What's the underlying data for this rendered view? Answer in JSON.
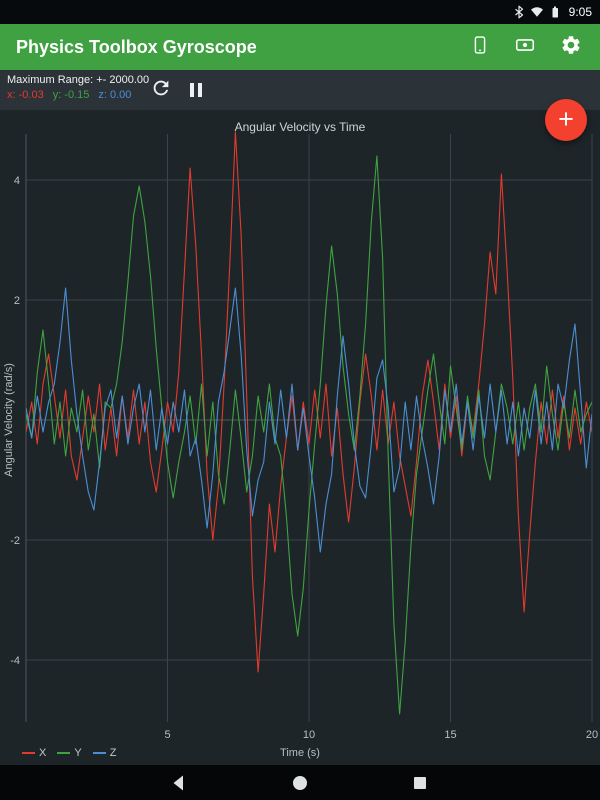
{
  "status_bar": {
    "time": "9:05",
    "icons": [
      "bluetooth-icon",
      "wifi-icon",
      "battery-icon"
    ]
  },
  "app_bar": {
    "title": "Physics Toolbox Gyroscope",
    "icons": [
      "device-icon",
      "record-icon",
      "settings-icon"
    ],
    "color": "#3fa142"
  },
  "toolbar": {
    "max_range_label": "Maximum Range: +- 2000.00",
    "readouts": [
      {
        "text": "x: -0.03",
        "color": "#e23b2e"
      },
      {
        "text": "y: -0.15",
        "color": "#3fa33f"
      },
      {
        "text": "z: 0.00",
        "color": "#4a8fd4"
      }
    ],
    "icons": [
      "reset-icon",
      "pause-icon"
    ]
  },
  "fab": {
    "label": "+",
    "color": "#f4402f"
  },
  "nav_bar": {
    "buttons": [
      "back",
      "home",
      "recents"
    ]
  },
  "chart_data": {
    "type": "line",
    "title": "Angular Velocity vs Time",
    "xlabel": "Time (s)",
    "ylabel": "Angular Velocity (rad/s)",
    "x_start": 0,
    "x_step": 0.2,
    "xlim": [
      0,
      20
    ],
    "ylim": [
      -5,
      4.8
    ],
    "x_ticks": [
      5,
      10,
      15,
      20
    ],
    "y_ticks": [
      4,
      2,
      -2,
      -4
    ],
    "grid": true,
    "legend_position": "bottom-left",
    "grid_color": "#3b444a",
    "axis_color": "#4c565d",
    "series": [
      {
        "name": "X",
        "color": "#e23b2e",
        "values": [
          -0.2,
          0.3,
          -0.4,
          0.6,
          1.1,
          0.4,
          -0.3,
          0.5,
          -0.6,
          -1.0,
          -0.3,
          0.4,
          -0.2,
          0.6,
          -0.5,
          0.2,
          -0.6,
          0.4,
          -0.3,
          0.5,
          -0.4,
          0.3,
          -0.7,
          -1.2,
          -0.5,
          0.3,
          -0.2,
          0.8,
          2.5,
          4.2,
          2.9,
          1.1,
          -0.9,
          -2.0,
          -1.1,
          0.6,
          2.6,
          4.8,
          3.1,
          0.4,
          -2.6,
          -4.2,
          -2.9,
          -1.4,
          -2.2,
          -1.1,
          -0.3,
          0.4,
          -0.5,
          0.3,
          -0.4,
          0.5,
          -0.3,
          0.6,
          -0.6,
          0.2,
          -0.9,
          -1.7,
          -0.8,
          0.3,
          1.1,
          0.4,
          -0.5,
          0.5,
          -0.4,
          0.3,
          -0.6,
          -1.1,
          -1.6,
          -0.7,
          0.4,
          1.0,
          0.3,
          -0.5,
          0.6,
          -0.3,
          0.4,
          -0.6,
          0.3,
          -0.2,
          0.6,
          1.6,
          2.8,
          2.1,
          4.1,
          2.5,
          0.7,
          -1.6,
          -3.2,
          -1.9,
          -0.7,
          0.3,
          -0.4,
          0.5,
          -0.3,
          0.4,
          -0.5,
          0.2,
          -0.4,
          0.3,
          -0.2
        ]
      },
      {
        "name": "Y",
        "color": "#3fa33f",
        "values": [
          0.1,
          -0.3,
          0.8,
          1.5,
          0.6,
          -0.4,
          0.3,
          -0.6,
          0.2,
          -0.2,
          0.5,
          -0.5,
          0.1,
          -0.8,
          0.3,
          0.2,
          0.6,
          1.3,
          2.3,
          3.4,
          3.9,
          3.3,
          2.4,
          1.2,
          0.2,
          -0.7,
          -1.3,
          -0.7,
          -0.2,
          0.4,
          -0.4,
          0.6,
          -0.6,
          0.3,
          -0.9,
          -1.4,
          -0.5,
          0.5,
          -0.3,
          -1.2,
          -0.6,
          0.4,
          -0.2,
          0.6,
          -0.3,
          -0.6,
          -1.6,
          -2.9,
          -3.6,
          -2.8,
          -1.5,
          -0.4,
          0.6,
          1.9,
          2.9,
          2.1,
          0.9,
          0.1,
          -0.5,
          0.4,
          1.6,
          3.3,
          4.4,
          2.7,
          -0.6,
          -3.4,
          -4.9,
          -3.7,
          -2.1,
          -0.9,
          -0.2,
          0.5,
          1.1,
          0.3,
          -0.4,
          0.9,
          0.2,
          -0.5,
          0.4,
          -0.3,
          0.5,
          -0.6,
          -1.0,
          -0.2,
          0.6,
          0.2,
          -0.4,
          0.3,
          -0.5,
          0.2,
          0.6,
          -0.2,
          0.9,
          0.1,
          -0.5,
          0.3,
          -0.3,
          0.5,
          -0.2,
          0.1,
          0.3
        ]
      },
      {
        "name": "Z",
        "color": "#4a8fd4",
        "values": [
          0.2,
          -0.3,
          0.4,
          -0.2,
          0.3,
          0.6,
          1.3,
          2.2,
          1.0,
          0.1,
          -0.6,
          -1.2,
          -1.5,
          -0.7,
          0.2,
          0.5,
          -0.3,
          0.4,
          -0.4,
          0.2,
          0.6,
          -0.2,
          0.5,
          -0.5,
          0.2,
          -0.4,
          0.3,
          -0.2,
          0.5,
          -0.6,
          -0.3,
          -1.0,
          -1.8,
          -0.9,
          0.3,
          0.8,
          1.5,
          2.2,
          1.1,
          -0.5,
          -1.6,
          -1.0,
          -0.7,
          0.3,
          -0.4,
          0.5,
          -0.3,
          0.6,
          -0.5,
          0.2,
          -0.6,
          -1.3,
          -2.2,
          -1.4,
          -0.9,
          0.4,
          1.4,
          0.6,
          -0.4,
          -1.1,
          -1.3,
          -0.4,
          0.7,
          1.0,
          0.2,
          -1.2,
          -0.8,
          0.3,
          -0.5,
          0.4,
          -0.3,
          -0.8,
          -1.4,
          -0.6,
          0.5,
          -0.2,
          0.6,
          -0.4,
          0.3,
          -0.5,
          0.4,
          -0.3,
          0.6,
          -0.2,
          0.5,
          -0.4,
          0.3,
          -0.6,
          0.2,
          -0.3,
          0.5,
          -0.4,
          0.3,
          -0.5,
          0.6,
          0.2,
          1.0,
          1.6,
          0.4,
          -0.8,
          0.1
        ]
      }
    ]
  }
}
